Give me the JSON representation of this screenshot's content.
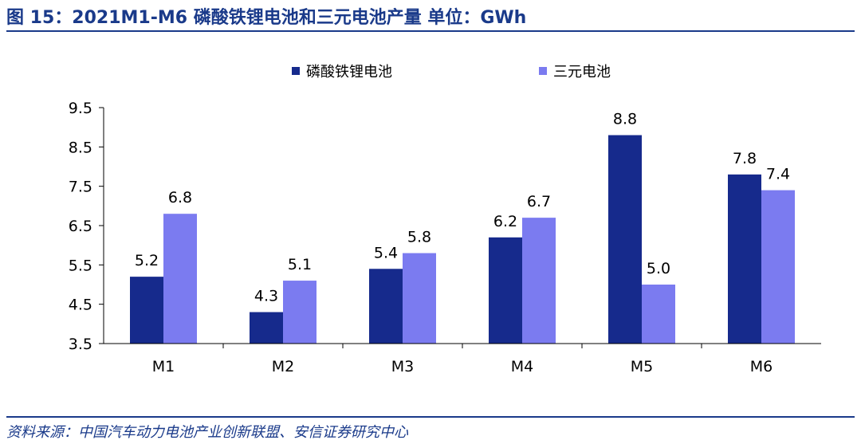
{
  "title": "图 15：2021M1-M6 磷酸铁锂电池和三元电池产量  单位：GWh",
  "source": "资料来源：中国汽车动力电池产业创新联盟、安信证券研究中心",
  "colors": {
    "lfp": "#162a8c",
    "ncm": "#7b7bf0",
    "axis": "#000000"
  },
  "chart_data": {
    "type": "bar",
    "categories": [
      "M1",
      "M2",
      "M3",
      "M4",
      "M5",
      "M6"
    ],
    "series": [
      {
        "name": "磷酸铁锂电池",
        "values": [
          5.2,
          4.3,
          5.4,
          6.2,
          8.8,
          7.8
        ],
        "labels": [
          "5.2",
          "4.3",
          "5.4",
          "6.2",
          "8.8",
          "7.8"
        ]
      },
      {
        "name": "三元电池",
        "values": [
          6.8,
          5.1,
          5.8,
          6.7,
          5.0,
          7.4
        ],
        "labels": [
          "6.8",
          "5.1",
          "5.8",
          "6.7",
          "5.0",
          "7.4"
        ]
      }
    ],
    "ylim": [
      3.5,
      9.5
    ],
    "yticks": [
      "3.5",
      "4.5",
      "5.5",
      "6.5",
      "7.5",
      "8.5",
      "9.5"
    ],
    "grid": false,
    "legend_position": "top"
  }
}
